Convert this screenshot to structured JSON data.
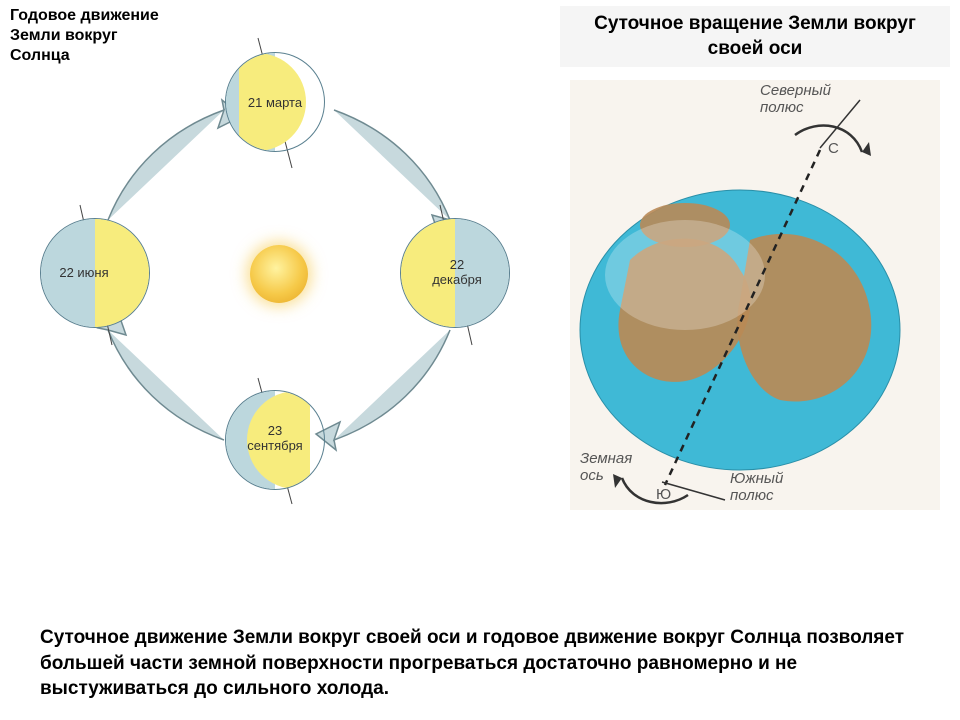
{
  "left_title": "Годовое движение\nЗемли вокруг\nСолнца",
  "right_title": "Суточное вращение Земли вокруг своей оси",
  "bottom_text": "Суточное движение Земли вокруг своей оси и годовое движение вокруг Солнца позволяет большей части земной поверхности прогреваться достаточно равномерно и не выстуживаться до сильного холода.",
  "orbit": {
    "dates": {
      "top": "21 марта",
      "right": "22\nдекабря",
      "bottom": "23\nсентября",
      "left": "22 июня"
    },
    "colors": {
      "shade": "#bcd7dd",
      "lit": "#f7ec7d",
      "sun_inner": "#fff3a0",
      "sun_outer": "#e5a420",
      "arrow": "#c7d9dd",
      "arrow_stroke": "#6f8a91",
      "earth_border": "#5a8090",
      "tick": "#444444"
    }
  },
  "globe": {
    "labels": {
      "north_pole": "Северный\nполюс",
      "south_pole": "Южный\nполюс",
      "axis": "Земная\nось",
      "north_letter": "С",
      "south_letter": "Ю"
    },
    "colors": {
      "ocean": "#3fb9d6",
      "land": "#b98a56",
      "axis": "#222222",
      "bg": "#f8f4ee",
      "arrow": "#333333"
    }
  }
}
